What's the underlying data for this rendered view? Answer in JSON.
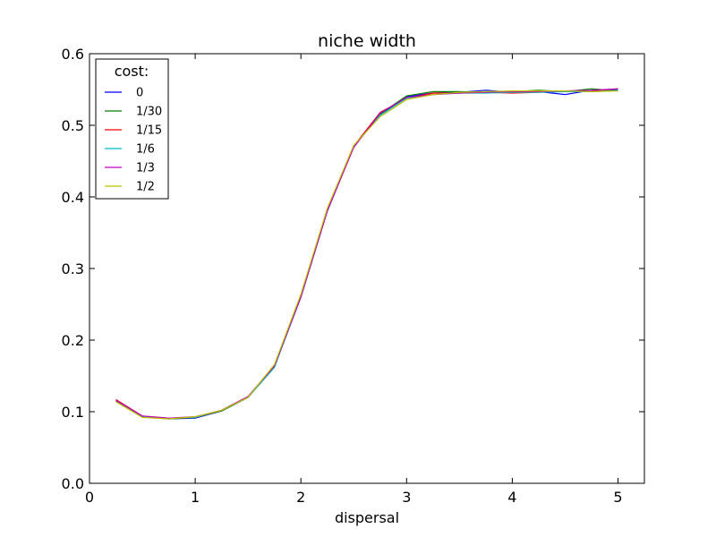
{
  "chart_data": {
    "type": "line",
    "title": "niche width",
    "xlabel": "dispersal",
    "ylabel": "",
    "xlim": [
      0,
      5.25
    ],
    "ylim": [
      0,
      0.6
    ],
    "xticks": [
      0,
      1,
      2,
      3,
      4,
      5
    ],
    "xtick_labels": [
      "0",
      "1",
      "2",
      "3",
      "4",
      "5"
    ],
    "yticks": [
      0.0,
      0.1,
      0.2,
      0.3,
      0.4,
      0.5,
      0.6
    ],
    "ytick_labels": [
      "0.0",
      "0.1",
      "0.2",
      "0.3",
      "0.4",
      "0.5",
      "0.6"
    ],
    "grid": false,
    "legend": {
      "title": "cost:",
      "placement": "top-left"
    },
    "x": [
      0.25,
      0.5,
      0.75,
      1.0,
      1.25,
      1.5,
      1.75,
      2.0,
      2.25,
      2.5,
      2.75,
      3.0,
      3.25,
      3.5,
      3.75,
      4.0,
      4.25,
      4.5,
      4.75,
      5.0
    ],
    "series": [
      {
        "name": "0",
        "color": "#0000ff",
        "values": [
          0.115,
          0.093,
          0.09,
          0.091,
          0.101,
          0.12,
          0.163,
          0.26,
          0.38,
          0.47,
          0.515,
          0.54,
          0.545,
          0.546,
          0.549,
          0.546,
          0.547,
          0.543,
          0.549,
          0.55
        ]
      },
      {
        "name": "1/30",
        "color": "#008000",
        "values": [
          0.115,
          0.093,
          0.09,
          0.092,
          0.101,
          0.12,
          0.163,
          0.262,
          0.382,
          0.471,
          0.516,
          0.541,
          0.547,
          0.547,
          0.546,
          0.547,
          0.549,
          0.547,
          0.551,
          0.548
        ]
      },
      {
        "name": "1/15",
        "color": "#ff0000",
        "values": [
          0.117,
          0.094,
          0.091,
          0.092,
          0.102,
          0.121,
          0.165,
          0.261,
          0.381,
          0.471,
          0.518,
          0.538,
          0.545,
          0.545,
          0.546,
          0.545,
          0.546,
          0.548,
          0.548,
          0.551
        ]
      },
      {
        "name": "1/6",
        "color": "#00bfbf",
        "values": [
          0.114,
          0.093,
          0.091,
          0.092,
          0.102,
          0.12,
          0.162,
          0.262,
          0.382,
          0.471,
          0.514,
          0.538,
          0.543,
          0.545,
          0.545,
          0.546,
          0.546,
          0.547,
          0.547,
          0.549
        ]
      },
      {
        "name": "1/3",
        "color": "#bf00bf",
        "values": [
          0.116,
          0.094,
          0.091,
          0.093,
          0.102,
          0.121,
          0.164,
          0.261,
          0.381,
          0.469,
          0.517,
          0.539,
          0.543,
          0.545,
          0.546,
          0.547,
          0.547,
          0.548,
          0.549,
          0.551
        ]
      },
      {
        "name": "1/2",
        "color": "#bfbf00",
        "values": [
          0.114,
          0.092,
          0.09,
          0.093,
          0.102,
          0.12,
          0.166,
          0.264,
          0.384,
          0.472,
          0.512,
          0.536,
          0.543,
          0.546,
          0.547,
          0.548,
          0.548,
          0.548,
          0.547,
          0.548
        ]
      }
    ]
  }
}
